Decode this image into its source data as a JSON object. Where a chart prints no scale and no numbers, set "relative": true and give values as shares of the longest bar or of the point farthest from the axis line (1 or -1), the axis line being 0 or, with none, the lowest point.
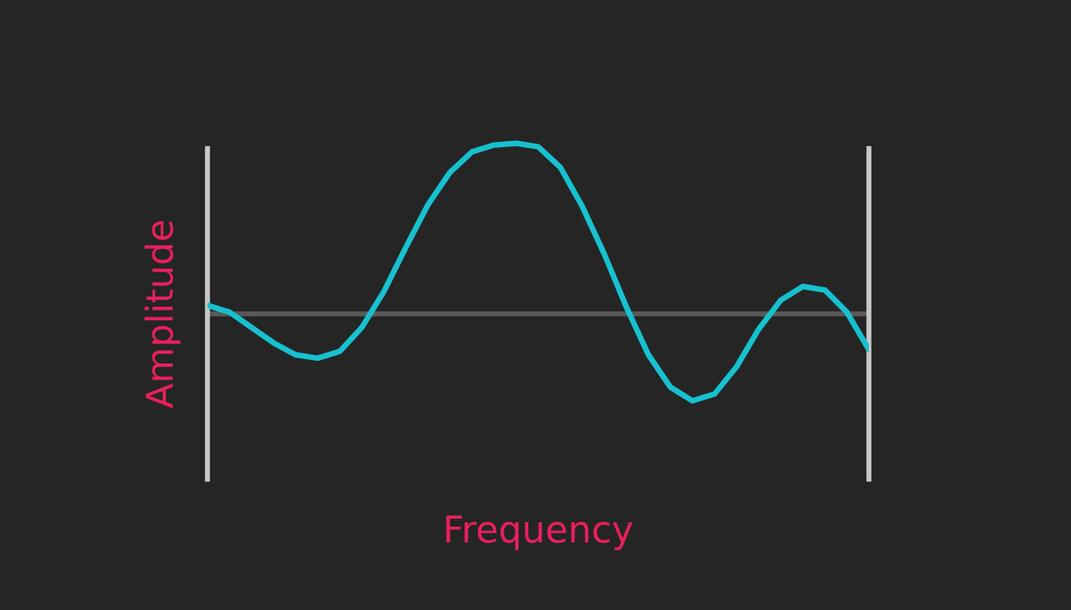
{
  "chart_data": {
    "type": "line",
    "relative": true,
    "xlabel": "Frequency",
    "ylabel": "Amplitude",
    "color": "#17c1cf",
    "categories": [
      null,
      null,
      null,
      null,
      null,
      null,
      null,
      null,
      null,
      null,
      null,
      null,
      null,
      null,
      null,
      null,
      null,
      null,
      null,
      null,
      null,
      null,
      null,
      null,
      null,
      null,
      null,
      null,
      null,
      null,
      null
    ],
    "values": [
      0.05,
      0.01,
      -0.08,
      -0.17,
      -0.24,
      -0.26,
      -0.22,
      -0.08,
      0.13,
      0.39,
      0.64,
      0.83,
      0.95,
      0.99,
      1.0,
      0.98,
      0.86,
      0.63,
      0.35,
      0.04,
      -0.24,
      -0.43,
      -0.51,
      -0.47,
      -0.31,
      -0.09,
      0.08,
      0.16,
      0.14,
      0.01,
      -0.21
    ]
  }
}
